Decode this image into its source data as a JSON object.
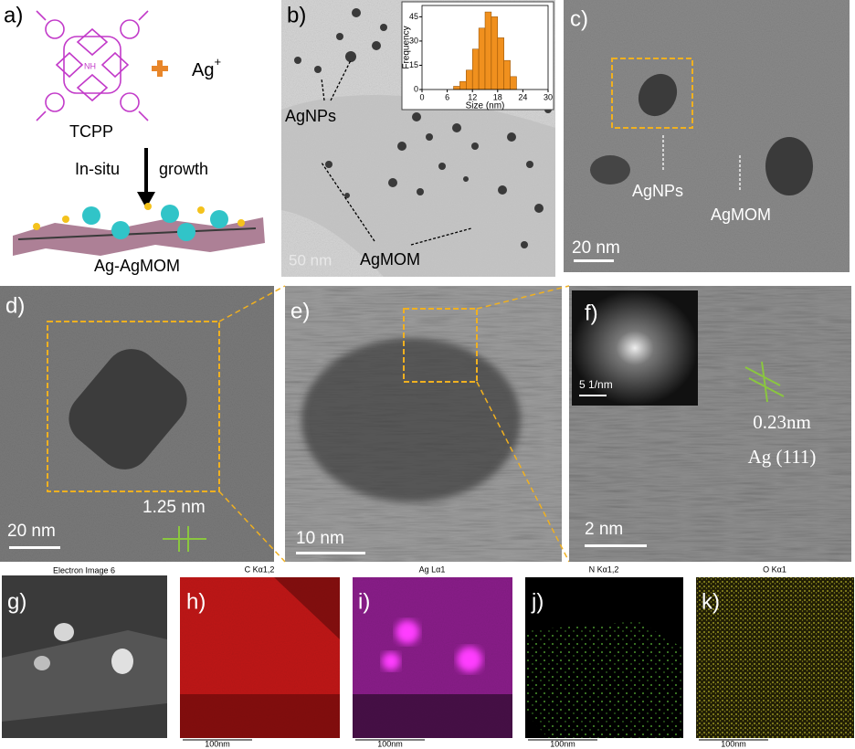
{
  "panels": {
    "a": {
      "label": "a)",
      "molecule": "TCPP",
      "ion_base": "Ag",
      "ion_charge": "+",
      "step_left": "In-situ",
      "step_right": "growth",
      "product": "Ag-AgMOM"
    },
    "b": {
      "label": "b)",
      "nps": "AgNPs",
      "mom": "AgMOM",
      "scale": "50 nm"
    },
    "c": {
      "label": "c)",
      "nps": "AgNPs",
      "mom": "AgMOM",
      "scale": "20 nm"
    },
    "d": {
      "label": "d)",
      "spacing": "1.25 nm",
      "scale": "20 nm"
    },
    "e": {
      "label": "e)",
      "scale": "10 nm"
    },
    "f": {
      "label": "f)",
      "fft_scale": "5 1/nm",
      "spacing": "0.23nm",
      "plane": "Ag (111)",
      "scale": "2 nm"
    },
    "g": {
      "label": "g)",
      "title": "Electron Image 6"
    },
    "h": {
      "label": "h)",
      "title": "C Kα1,2",
      "scale": "100nm"
    },
    "i": {
      "label": "i)",
      "title": "Ag Lα1",
      "scale": "100nm"
    },
    "j": {
      "label": "j)",
      "title": "N Kα1,2",
      "scale": "100nm"
    },
    "k": {
      "label": "k)",
      "title": "O Kα1",
      "scale": "100nm"
    }
  },
  "chart_data": {
    "type": "histogram",
    "x_label": "Size (nm)",
    "y_label": "Frequency",
    "bins": [
      7.5,
      9,
      10.5,
      12,
      13.5,
      15,
      16.5,
      18,
      19.5,
      21,
      22.5
    ],
    "values": [
      2,
      5,
      12,
      25,
      38,
      48,
      45,
      32,
      18,
      8
    ],
    "color": "#f0901e",
    "xlim": [
      0,
      30
    ],
    "ylim": [
      0,
      52
    ],
    "xticks": [
      0,
      6,
      12,
      18,
      24,
      30
    ],
    "yticks": [
      0,
      15,
      30,
      45
    ]
  }
}
